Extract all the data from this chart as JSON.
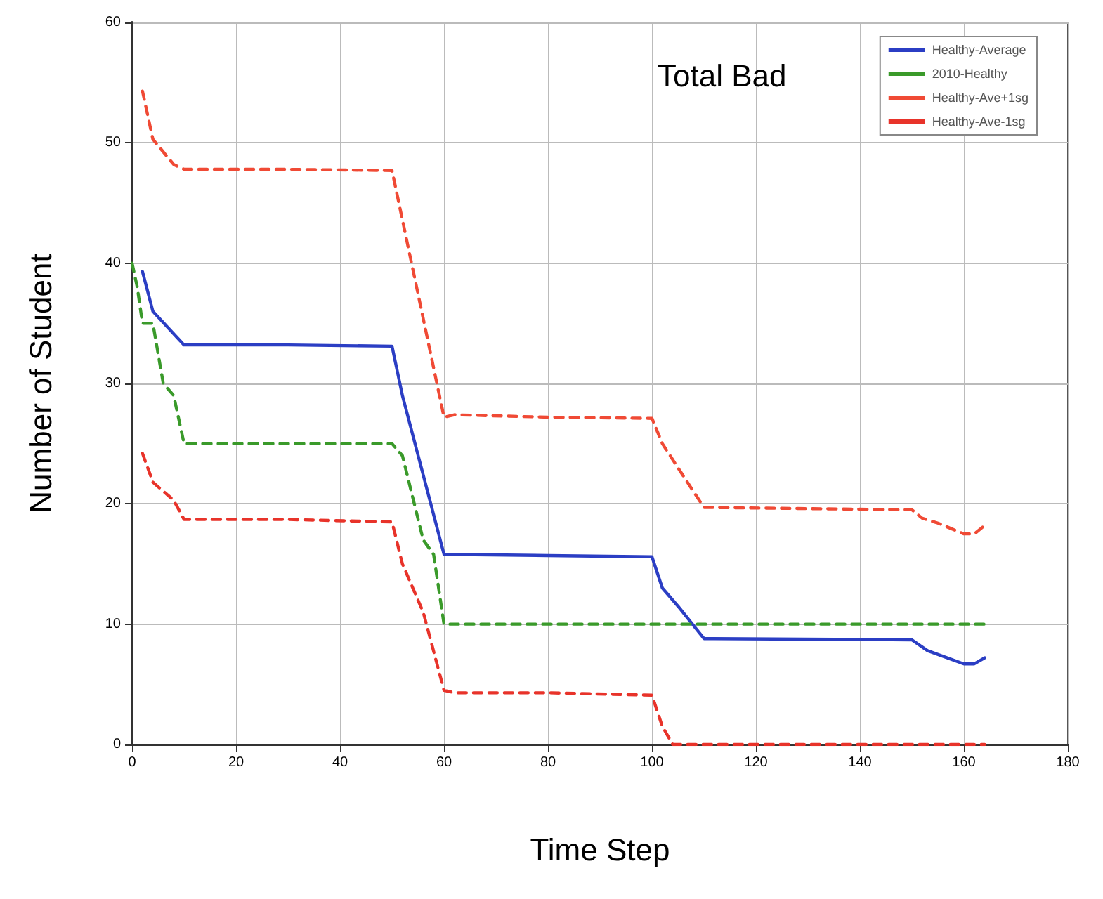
{
  "chart_data": {
    "type": "line",
    "title": "Total Bad",
    "xlabel": "Time Step",
    "ylabel": "Number of Student",
    "xlim": [
      0,
      180
    ],
    "xticks": [
      0,
      20,
      40,
      60,
      80,
      100,
      120,
      140,
      160,
      180
    ],
    "ylim": [
      0,
      60
    ],
    "yticks": [
      0,
      10,
      20,
      30,
      40,
      50,
      60
    ],
    "grid": true,
    "legend": "top right",
    "marker": "none",
    "series": [
      {
        "name": "Healthy-Average",
        "color": "#2b3ec4",
        "line_style": "solid",
        "x": [
          2,
          4,
          10,
          30,
          50,
          52,
          60,
          80,
          100,
          102,
          105,
          110,
          150,
          153,
          160,
          162,
          164
        ],
        "values": [
          39.3,
          36,
          33.2,
          33.2,
          33.1,
          29,
          15.8,
          15.7,
          15.6,
          13,
          11.5,
          8.8,
          8.7,
          7.8,
          6.7,
          6.7,
          7.2
        ]
      },
      {
        "name": "2010-Healthy",
        "color": "#3a9a2a",
        "line_style": "dashed",
        "x": [
          0,
          1,
          2,
          4,
          6,
          8,
          10,
          50,
          52,
          54,
          56,
          58,
          60,
          164
        ],
        "values": [
          40,
          38,
          35,
          35,
          30,
          29,
          25,
          25,
          24,
          20.5,
          17,
          15.8,
          10,
          10
        ]
      },
      {
        "name": "Healthy-Ave+1sg",
        "color": "#f04a35",
        "line_style": "dashed",
        "x": [
          2,
          4,
          8,
          10,
          30,
          50,
          60,
          62,
          80,
          100,
          102,
          105,
          110,
          150,
          152,
          155,
          160,
          162,
          164
        ],
        "values": [
          54.3,
          50.3,
          48.2,
          47.8,
          47.8,
          47.7,
          27.2,
          27.4,
          27.2,
          27.1,
          25,
          23,
          19.7,
          19.5,
          18.8,
          18.4,
          17.5,
          17.5,
          18.2
        ]
      },
      {
        "name": "Healthy-Ave-1sg",
        "color": "#e8332a",
        "line_style": "dashed",
        "x": [
          2,
          4,
          8,
          10,
          30,
          50,
          52,
          56,
          60,
          62,
          80,
          100,
          102,
          104,
          164
        ],
        "values": [
          24.2,
          21.8,
          20.3,
          18.7,
          18.7,
          18.5,
          15,
          11,
          4.5,
          4.3,
          4.3,
          4.1,
          1.5,
          0,
          0
        ]
      }
    ]
  }
}
